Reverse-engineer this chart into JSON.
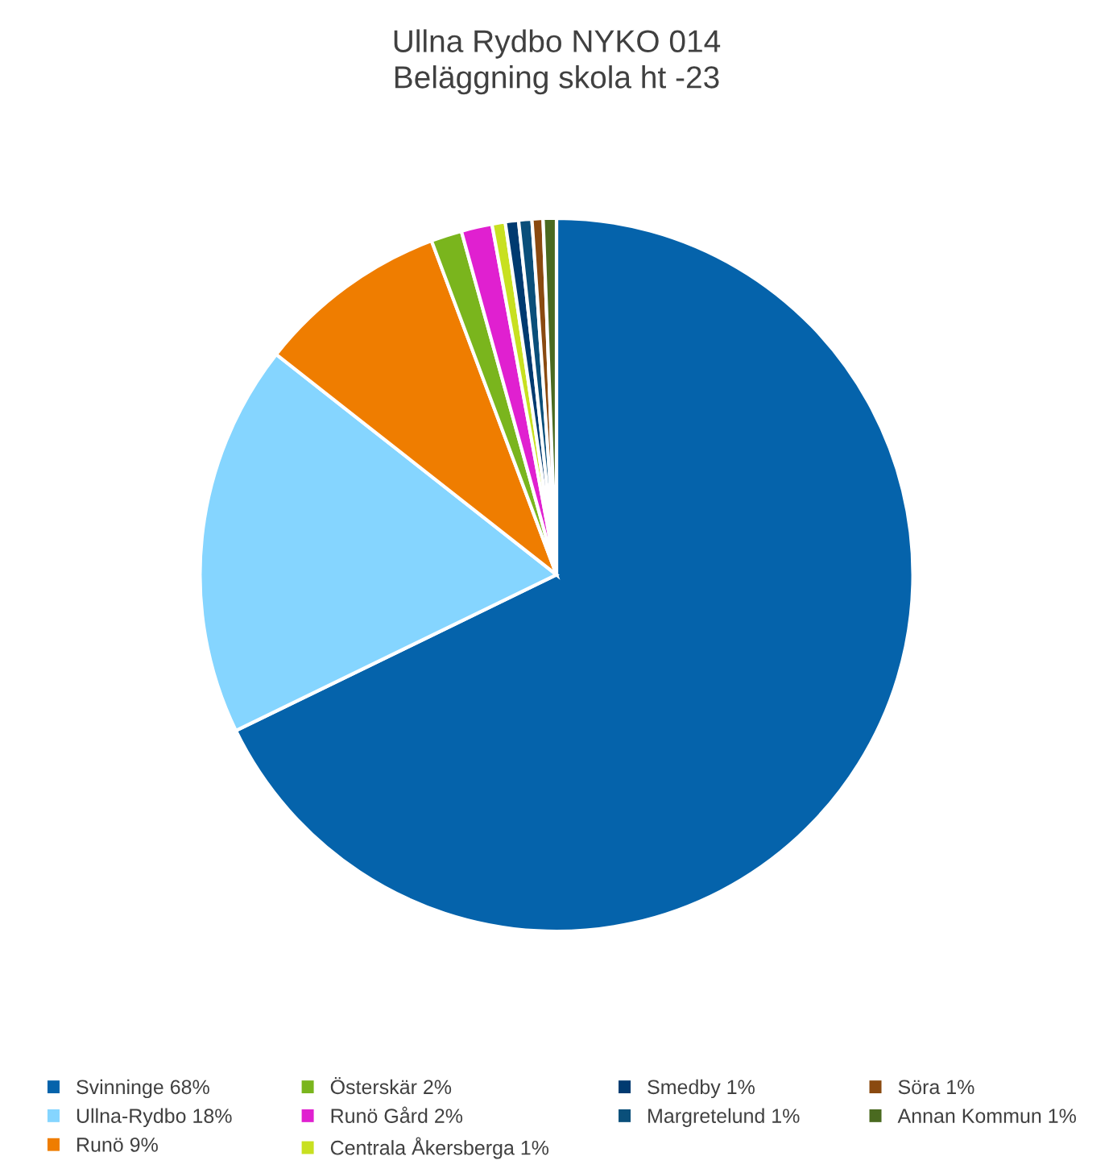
{
  "chart_data": {
    "type": "pie",
    "title": "Ullna Rydbo NYKO 014\nBeläggning skola ht -23",
    "categories": [
      "Svinninge 68%",
      "Ullna-Rydbo 18%",
      "Runö 9%",
      "Österskär 2%",
      "Runö Gård 2%",
      "Centrala Åkersberga 1%",
      "Smedby 1%",
      "Margretelund 1%",
      "Söra 1%",
      "Annan Kommun 1%"
    ],
    "values": [
      67.8,
      17.8,
      8.7,
      1.4,
      1.4,
      0.6,
      0.6,
      0.6,
      0.5,
      0.6
    ],
    "colors": [
      "#0563ab",
      "#85d5ff",
      "#ef7d00",
      "#7ab51d",
      "#e020d0",
      "#c8e020",
      "#003a70",
      "#0a4f7a",
      "#8a4a10",
      "#4a6a20"
    ],
    "legend": "bottom"
  }
}
